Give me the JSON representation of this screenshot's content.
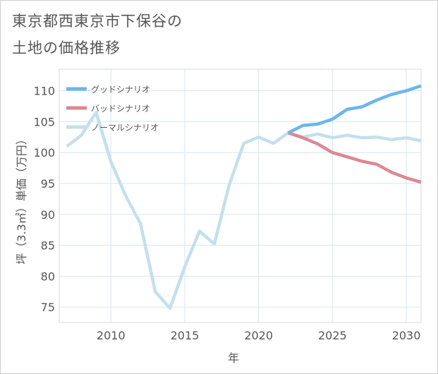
{
  "title_line1": "東京都西東京市下保谷の",
  "title_line2": "土地の価格推移",
  "chart_data": {
    "type": "line",
    "xlabel": "年",
    "ylabel": "坪（3.3㎡）単価（万円）",
    "xlim": [
      2006.5,
      2031
    ],
    "ylim": [
      72.5,
      113.5
    ],
    "xticks": [
      2010,
      2015,
      2020,
      2025,
      2030
    ],
    "yticks": [
      75,
      80,
      85,
      90,
      95,
      100,
      105,
      110
    ],
    "grid": true,
    "legend_position": "top-left",
    "series": [
      {
        "name": "グッドシナリオ",
        "color": "#6cb6eb",
        "x": [
          2022,
          2023,
          2024,
          2025,
          2026,
          2027,
          2028,
          2029,
          2030,
          2031
        ],
        "y": [
          103.2,
          104.4,
          104.6,
          105.4,
          107.0,
          107.4,
          108.5,
          109.4,
          110.0,
          110.8
        ]
      },
      {
        "name": "バッドシナリオ",
        "color": "#de8891",
        "x": [
          2022,
          2023,
          2024,
          2025,
          2026,
          2027,
          2028,
          2029,
          2030,
          2031
        ],
        "y": [
          103.2,
          102.4,
          101.4,
          100.0,
          99.3,
          98.6,
          98.1,
          96.8,
          95.9,
          95.2
        ]
      },
      {
        "name": "ノーマルシナリオ",
        "color": "#c4dfed",
        "x": [
          2007,
          2008,
          2009,
          2010,
          2011,
          2012,
          2013,
          2014,
          2015,
          2016,
          2017,
          2018,
          2019,
          2020,
          2021,
          2022,
          2023,
          2024,
          2025,
          2026,
          2027,
          2028,
          2029,
          2030,
          2031
        ],
        "y": [
          101.0,
          102.8,
          106.5,
          98.5,
          93.0,
          88.5,
          77.5,
          74.8,
          81.5,
          87.3,
          85.2,
          94.7,
          101.5,
          102.5,
          101.5,
          103.2,
          102.5,
          103.0,
          102.4,
          102.8,
          102.4,
          102.5,
          102.1,
          102.4,
          101.9
        ]
      }
    ]
  }
}
